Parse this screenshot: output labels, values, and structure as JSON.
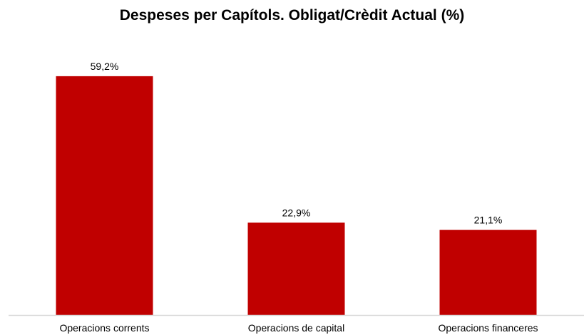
{
  "chart_data": {
    "type": "bar",
    "title": "Despeses per Capítols. Obligat/Crèdit Actual (%)",
    "categories": [
      "Operacions corrents",
      "Operacions de capital",
      "Operacions financeres"
    ],
    "values": [
      59.2,
      22.9,
      21.1
    ],
    "data_labels": [
      "59,2%",
      "22,9%",
      "21,1%"
    ],
    "xlabel": "",
    "ylabel": "",
    "ylim": [
      0,
      62
    ],
    "grid": false,
    "legend": "none",
    "bar_color": "#c00000",
    "axis_color": "#d9d9d9"
  }
}
